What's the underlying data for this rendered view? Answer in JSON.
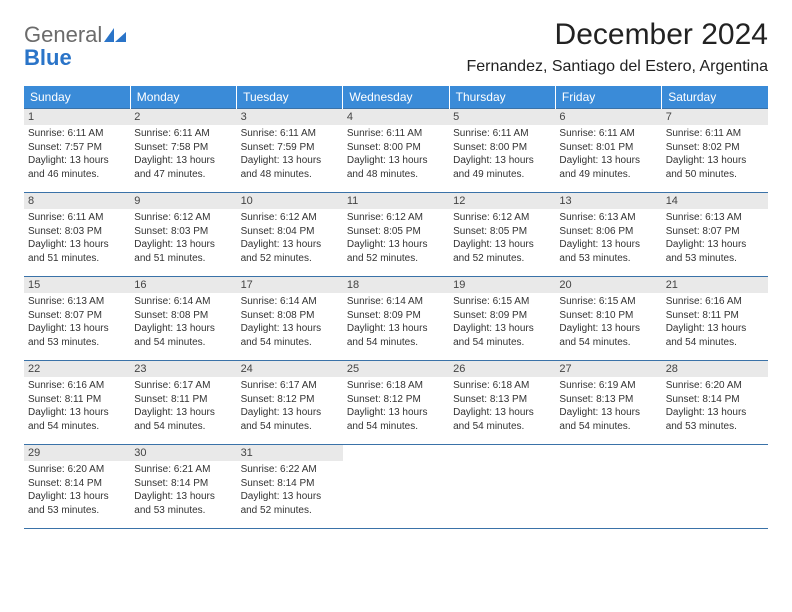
{
  "logo": {
    "general": "General",
    "blue": "Blue"
  },
  "title": {
    "month": "December 2024",
    "location": "Fernandez, Santiago del Estero, Argentina"
  },
  "colors": {
    "header_bg": "#3a8bd8",
    "header_text": "#ffffff",
    "day_bg": "#e9e9e9",
    "border": "#3a72a8",
    "logo_gray": "#6b6b6b",
    "logo_blue": "#2a74c8"
  },
  "dayHeaders": [
    "Sunday",
    "Monday",
    "Tuesday",
    "Wednesday",
    "Thursday",
    "Friday",
    "Saturday"
  ],
  "weeks": [
    [
      {
        "n": "1",
        "sr": "Sunrise: 6:11 AM",
        "ss": "Sunset: 7:57 PM",
        "dl": "Daylight: 13 hours and 46 minutes."
      },
      {
        "n": "2",
        "sr": "Sunrise: 6:11 AM",
        "ss": "Sunset: 7:58 PM",
        "dl": "Daylight: 13 hours and 47 minutes."
      },
      {
        "n": "3",
        "sr": "Sunrise: 6:11 AM",
        "ss": "Sunset: 7:59 PM",
        "dl": "Daylight: 13 hours and 48 minutes."
      },
      {
        "n": "4",
        "sr": "Sunrise: 6:11 AM",
        "ss": "Sunset: 8:00 PM",
        "dl": "Daylight: 13 hours and 48 minutes."
      },
      {
        "n": "5",
        "sr": "Sunrise: 6:11 AM",
        "ss": "Sunset: 8:00 PM",
        "dl": "Daylight: 13 hours and 49 minutes."
      },
      {
        "n": "6",
        "sr": "Sunrise: 6:11 AM",
        "ss": "Sunset: 8:01 PM",
        "dl": "Daylight: 13 hours and 49 minutes."
      },
      {
        "n": "7",
        "sr": "Sunrise: 6:11 AM",
        "ss": "Sunset: 8:02 PM",
        "dl": "Daylight: 13 hours and 50 minutes."
      }
    ],
    [
      {
        "n": "8",
        "sr": "Sunrise: 6:11 AM",
        "ss": "Sunset: 8:03 PM",
        "dl": "Daylight: 13 hours and 51 minutes."
      },
      {
        "n": "9",
        "sr": "Sunrise: 6:12 AM",
        "ss": "Sunset: 8:03 PM",
        "dl": "Daylight: 13 hours and 51 minutes."
      },
      {
        "n": "10",
        "sr": "Sunrise: 6:12 AM",
        "ss": "Sunset: 8:04 PM",
        "dl": "Daylight: 13 hours and 52 minutes."
      },
      {
        "n": "11",
        "sr": "Sunrise: 6:12 AM",
        "ss": "Sunset: 8:05 PM",
        "dl": "Daylight: 13 hours and 52 minutes."
      },
      {
        "n": "12",
        "sr": "Sunrise: 6:12 AM",
        "ss": "Sunset: 8:05 PM",
        "dl": "Daylight: 13 hours and 52 minutes."
      },
      {
        "n": "13",
        "sr": "Sunrise: 6:13 AM",
        "ss": "Sunset: 8:06 PM",
        "dl": "Daylight: 13 hours and 53 minutes."
      },
      {
        "n": "14",
        "sr": "Sunrise: 6:13 AM",
        "ss": "Sunset: 8:07 PM",
        "dl": "Daylight: 13 hours and 53 minutes."
      }
    ],
    [
      {
        "n": "15",
        "sr": "Sunrise: 6:13 AM",
        "ss": "Sunset: 8:07 PM",
        "dl": "Daylight: 13 hours and 53 minutes."
      },
      {
        "n": "16",
        "sr": "Sunrise: 6:14 AM",
        "ss": "Sunset: 8:08 PM",
        "dl": "Daylight: 13 hours and 54 minutes."
      },
      {
        "n": "17",
        "sr": "Sunrise: 6:14 AM",
        "ss": "Sunset: 8:08 PM",
        "dl": "Daylight: 13 hours and 54 minutes."
      },
      {
        "n": "18",
        "sr": "Sunrise: 6:14 AM",
        "ss": "Sunset: 8:09 PM",
        "dl": "Daylight: 13 hours and 54 minutes."
      },
      {
        "n": "19",
        "sr": "Sunrise: 6:15 AM",
        "ss": "Sunset: 8:09 PM",
        "dl": "Daylight: 13 hours and 54 minutes."
      },
      {
        "n": "20",
        "sr": "Sunrise: 6:15 AM",
        "ss": "Sunset: 8:10 PM",
        "dl": "Daylight: 13 hours and 54 minutes."
      },
      {
        "n": "21",
        "sr": "Sunrise: 6:16 AM",
        "ss": "Sunset: 8:11 PM",
        "dl": "Daylight: 13 hours and 54 minutes."
      }
    ],
    [
      {
        "n": "22",
        "sr": "Sunrise: 6:16 AM",
        "ss": "Sunset: 8:11 PM",
        "dl": "Daylight: 13 hours and 54 minutes."
      },
      {
        "n": "23",
        "sr": "Sunrise: 6:17 AM",
        "ss": "Sunset: 8:11 PM",
        "dl": "Daylight: 13 hours and 54 minutes."
      },
      {
        "n": "24",
        "sr": "Sunrise: 6:17 AM",
        "ss": "Sunset: 8:12 PM",
        "dl": "Daylight: 13 hours and 54 minutes."
      },
      {
        "n": "25",
        "sr": "Sunrise: 6:18 AM",
        "ss": "Sunset: 8:12 PM",
        "dl": "Daylight: 13 hours and 54 minutes."
      },
      {
        "n": "26",
        "sr": "Sunrise: 6:18 AM",
        "ss": "Sunset: 8:13 PM",
        "dl": "Daylight: 13 hours and 54 minutes."
      },
      {
        "n": "27",
        "sr": "Sunrise: 6:19 AM",
        "ss": "Sunset: 8:13 PM",
        "dl": "Daylight: 13 hours and 54 minutes."
      },
      {
        "n": "28",
        "sr": "Sunrise: 6:20 AM",
        "ss": "Sunset: 8:14 PM",
        "dl": "Daylight: 13 hours and 53 minutes."
      }
    ],
    [
      {
        "n": "29",
        "sr": "Sunrise: 6:20 AM",
        "ss": "Sunset: 8:14 PM",
        "dl": "Daylight: 13 hours and 53 minutes."
      },
      {
        "n": "30",
        "sr": "Sunrise: 6:21 AM",
        "ss": "Sunset: 8:14 PM",
        "dl": "Daylight: 13 hours and 53 minutes."
      },
      {
        "n": "31",
        "sr": "Sunrise: 6:22 AM",
        "ss": "Sunset: 8:14 PM",
        "dl": "Daylight: 13 hours and 52 minutes."
      },
      null,
      null,
      null,
      null
    ]
  ]
}
